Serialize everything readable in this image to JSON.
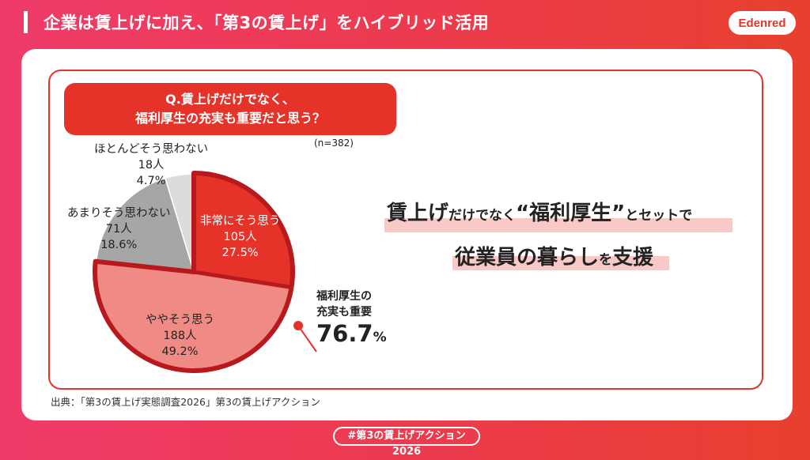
{
  "header": {
    "title": "企業は賃上げに加え、「第3の賃上げ」をハイブリッド活用"
  },
  "logo": {
    "text": "Edenred",
    "color": "#e5332a"
  },
  "question": {
    "line1": "Q.賃上げだけでなく、",
    "line2": "福利厚生の充実も重要だと思う？"
  },
  "sample": "(n=382)",
  "chart_data": {
    "type": "pie",
    "slices": [
      {
        "label": "非常にそう思う",
        "count": "105人",
        "percent_text": "27.5%",
        "value": 27.5,
        "color": "#e5332a"
      },
      {
        "label": "ややそう思う",
        "count": "188人",
        "percent_text": "49.2%",
        "value": 49.2,
        "color": "#f08a85"
      },
      {
        "label": "あまりそう思わない",
        "count": "71人",
        "percent_text": "18.6%",
        "value": 18.6,
        "color": "#a6a6a6"
      },
      {
        "label": "ほとんどそう思わない",
        "count": "18人",
        "percent_text": "4.7%",
        "value": 4.7,
        "color": "#dcdcdc"
      }
    ],
    "highlight_color": "#b8191c"
  },
  "summary": {
    "line1": "福利厚生の",
    "line2": "充実も重要",
    "value": "76.7",
    "unit": "%"
  },
  "message": {
    "line1": {
      "a": "賃上げ",
      "b": "だけでなく",
      "c": "“福利厚生”",
      "d": "とセットで"
    },
    "line2": {
      "a": "従業員の暮らし",
      "b": "を",
      "c": "支援"
    }
  },
  "source": "出典：「第3の賃上げ実態調査2026」第3の賃上げアクション",
  "hashtag": "#第3の賃上げアクション2026"
}
